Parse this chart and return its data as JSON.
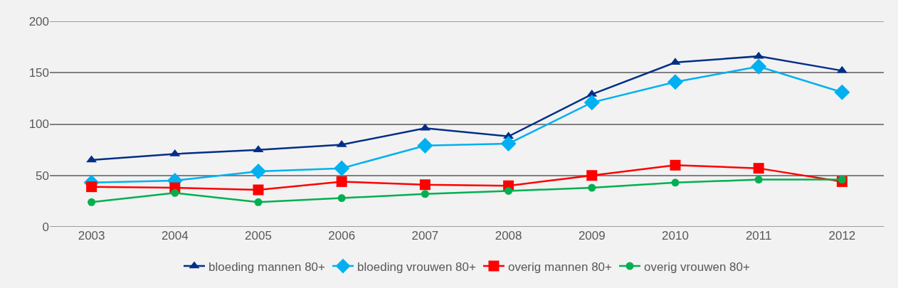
{
  "chart_data": {
    "type": "line",
    "categories": [
      "2003",
      "2004",
      "2005",
      "2006",
      "2007",
      "2008",
      "2009",
      "2010",
      "2011",
      "2012"
    ],
    "series": [
      {
        "name": "bloeding mannen 80+",
        "color": "#002f87",
        "marker": "triangle",
        "values": [
          65,
          71,
          75,
          80,
          96,
          88,
          129,
          160,
          166,
          152
        ]
      },
      {
        "name": "bloeding vrouwen 80+",
        "color": "#00b0f0",
        "marker": "diamond",
        "values": [
          43,
          45,
          54,
          57,
          79,
          81,
          121,
          141,
          156,
          131
        ]
      },
      {
        "name": "overig mannen 80+",
        "color": "#ff0000",
        "marker": "square",
        "values": [
          39,
          38,
          36,
          44,
          41,
          40,
          50,
          60,
          57,
          44
        ]
      },
      {
        "name": "overig vrouwen 80+",
        "color": "#00b050",
        "marker": "circle",
        "values": [
          24,
          33,
          24,
          28,
          32,
          35,
          38,
          43,
          46,
          46
        ]
      }
    ],
    "ylim": [
      0,
      200
    ],
    "yticks": [
      0,
      50,
      100,
      150,
      200
    ],
    "grid": "y",
    "legend": "bottom",
    "line_style": "solid"
  }
}
